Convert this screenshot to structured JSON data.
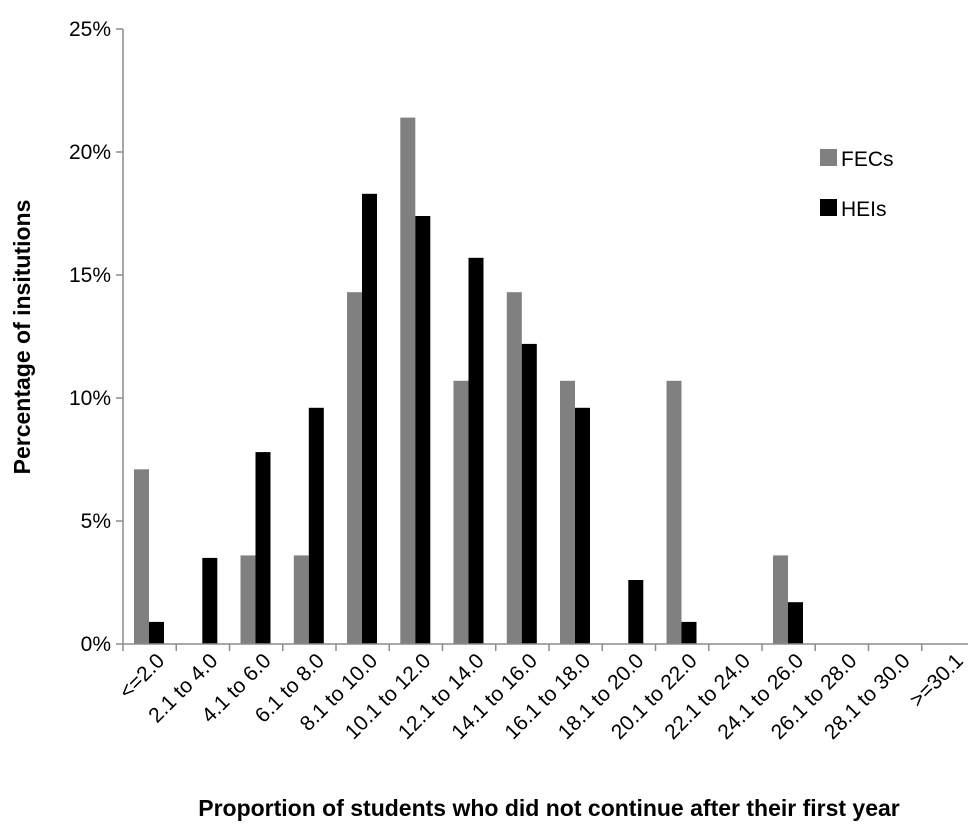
{
  "chart_data": {
    "type": "bar",
    "categories": [
      "<=2.0",
      "2.1 to 4.0",
      "4.1 to 6.0",
      "6.1 to 8.0",
      "8.1 to 10.0",
      "10.1 to 12.0",
      "12.1 to 14.0",
      "14.1 to 16.0",
      "16.1 to 18.0",
      "18.1 to 20.0",
      "20.1 to 22.0",
      "22.1 to 24.0",
      "24.1 to 26.0",
      "26.1 to 28.0",
      "28.1 to 30.0",
      ">=30.1"
    ],
    "series": [
      {
        "name": "FECs",
        "color": "#808080",
        "values": [
          7.1,
          0,
          3.6,
          3.6,
          14.3,
          21.4,
          10.7,
          14.3,
          10.7,
          0,
          10.7,
          0,
          3.6,
          0,
          0,
          0
        ]
      },
      {
        "name": "HEIs",
        "color": "#000000",
        "values": [
          0.9,
          3.5,
          7.8,
          9.6,
          18.3,
          17.4,
          15.7,
          12.2,
          9.6,
          2.6,
          0.9,
          0,
          1.7,
          0,
          0,
          0
        ]
      }
    ],
    "title": "",
    "xlabel": "Proportion of students who did not continue after their first year",
    "ylabel": "Percentage of insitutions",
    "ylim": [
      0,
      25
    ],
    "yticks": [
      0,
      5,
      10,
      15,
      20,
      25
    ],
    "ytick_labels": [
      "0%",
      "5%",
      "10%",
      "15%",
      "20%",
      "25%"
    ],
    "grid": false,
    "legend": {
      "position": "right"
    }
  }
}
